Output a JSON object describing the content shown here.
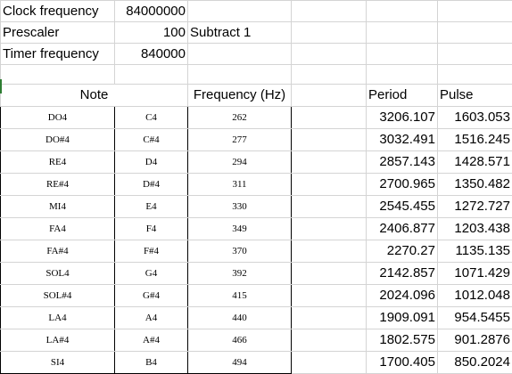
{
  "header": {
    "clock_label": "Clock frequency",
    "clock_value": "84000000",
    "prescaler_label": "Prescaler",
    "prescaler_value": "100",
    "prescaler_note": "Subtract 1",
    "timer_label": "Timer frequency",
    "timer_value": "840000"
  },
  "columns": {
    "note": "Note",
    "frequency": "Frequency (Hz)",
    "period": "Period",
    "pulse": "Pulse"
  },
  "notes": [
    {
      "solfege": "DO4",
      "name": "C4",
      "freq": "262",
      "period": "3206.107",
      "pulse": "1603.053"
    },
    {
      "solfege": "DO#4",
      "name": "C#4",
      "freq": "277",
      "period": "3032.491",
      "pulse": "1516.245"
    },
    {
      "solfege": "RE4",
      "name": "D4",
      "freq": "294",
      "period": "2857.143",
      "pulse": "1428.571"
    },
    {
      "solfege": "RE#4",
      "name": "D#4",
      "freq": "311",
      "period": "2700.965",
      "pulse": "1350.482"
    },
    {
      "solfege": "MI4",
      "name": "E4",
      "freq": "330",
      "period": "2545.455",
      "pulse": "1272.727"
    },
    {
      "solfege": "FA4",
      "name": "F4",
      "freq": "349",
      "period": "2406.877",
      "pulse": "1203.438"
    },
    {
      "solfege": "FA#4",
      "name": "F#4",
      "freq": "370",
      "period": "2270.27",
      "pulse": "1135.135"
    },
    {
      "solfege": "SOL4",
      "name": "G4",
      "freq": "392",
      "period": "2142.857",
      "pulse": "1071.429"
    },
    {
      "solfege": "SOL#4",
      "name": "G#4",
      "freq": "415",
      "period": "2024.096",
      "pulse": "1012.048"
    },
    {
      "solfege": "LA4",
      "name": "A4",
      "freq": "440",
      "period": "1909.091",
      "pulse": "954.5455"
    },
    {
      "solfege": "LA#4",
      "name": "A#4",
      "freq": "466",
      "period": "1802.575",
      "pulse": "901.2876"
    },
    {
      "solfege": "SI4",
      "name": "B4",
      "freq": "494",
      "period": "1700.405",
      "pulse": "850.2024"
    }
  ]
}
